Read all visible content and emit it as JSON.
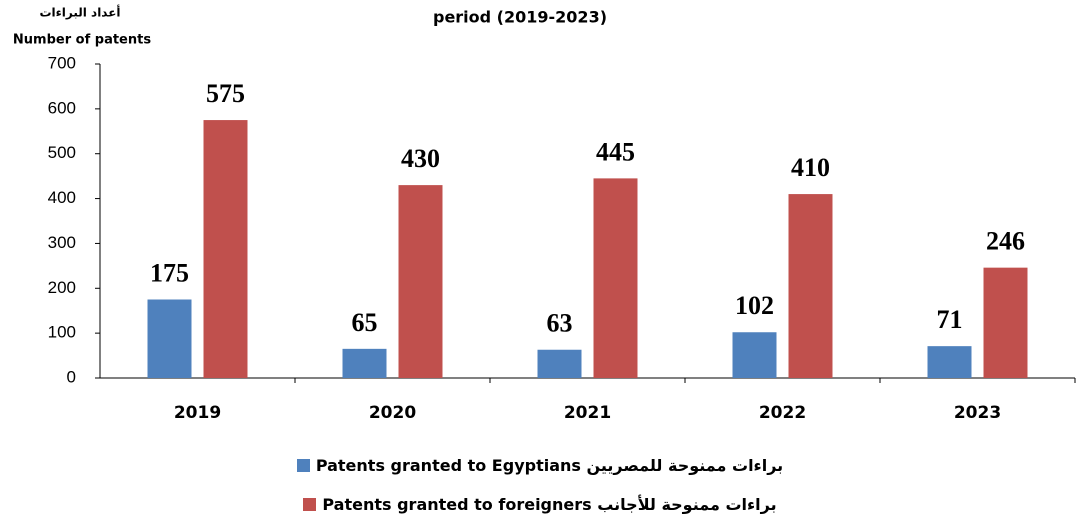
{
  "chart_data": {
    "type": "bar",
    "title": "period (2019-2023)",
    "y_label": [
      "أعداد البراءات",
      "Number of patents"
    ],
    "categories": [
      "2019",
      "2020",
      "2021",
      "2022",
      "2023"
    ],
    "series": [
      {
        "name": "براءات ممنوحة للمصريين Patents granted to Egyptians",
        "color": "#4f81bd",
        "values": [
          175,
          65,
          63,
          102,
          71
        ]
      },
      {
        "name": "براءات ممنوحة للأجانب  Patents granted to foreigners",
        "color": "#c0504d",
        "values": [
          575,
          430,
          445,
          410,
          246
        ]
      }
    ],
    "ylim": [
      0,
      700
    ],
    "yticks": [
      0,
      100,
      200,
      300,
      400,
      500,
      600,
      700
    ],
    "grid": false
  }
}
